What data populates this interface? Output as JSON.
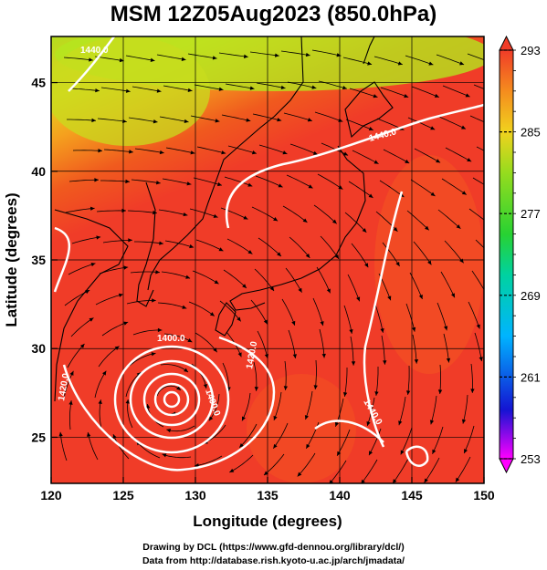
{
  "title": "MSM 12Z05Aug2023 (850.0hPa)",
  "axes": {
    "xlabel": "Longitude (degrees)",
    "ylabel": "Latitude  (degrees)",
    "lon_range": [
      120,
      150
    ],
    "lat_range": [
      22.4,
      47.6
    ],
    "x_ticks": [
      120,
      125,
      130,
      135,
      140,
      145,
      150
    ],
    "y_ticks": [
      25,
      30,
      35,
      40,
      45
    ]
  },
  "colorbar": {
    "min": 253,
    "max": 293,
    "labels": [
      "293",
      "285",
      "277",
      "269",
      "261",
      "253"
    ]
  },
  "contour_labels": [
    "1400.0",
    "1400.0",
    "1420.0",
    "1420.0",
    "1440.0",
    "1440.0",
    "1440.0"
  ],
  "footer": {
    "line1": "Drawing by DCL (https://www.gfd-dennou.org/library/dcl/)",
    "line2": "Data from http://database.rish.kyoto-u.ac.jp/arch/jmadata/"
  },
  "colors": {
    "warm": "#f03c28",
    "hot": "#f55a1e",
    "mild": "#f5a01e",
    "cool": "#b4dc1e",
    "contour": "#ffffff",
    "stream": "#000000"
  }
}
